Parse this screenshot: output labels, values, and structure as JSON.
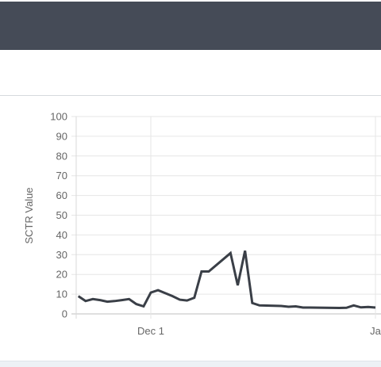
{
  "colors": {
    "header_bg": "#454b57",
    "line": "#3a3f47",
    "grid": "#e6e6e6",
    "tick_text": "#666666"
  },
  "chart_data": {
    "type": "line",
    "title": "",
    "xlabel": "",
    "ylabel": "SCTR Value",
    "ylim": [
      0,
      100
    ],
    "y_ticks": [
      0,
      10,
      20,
      30,
      40,
      50,
      60,
      70,
      80,
      90,
      100
    ],
    "x_ticks": [
      {
        "label": "Dec 1",
        "x": "2022-12-01"
      },
      {
        "label": "Ja",
        "x": "2023-01-01"
      }
    ],
    "grid": true,
    "legend": "none",
    "series": [
      {
        "color": "#3a3f47",
        "points": [
          {
            "x": "2022-11-21",
            "y": 9
          },
          {
            "x": "2022-11-22",
            "y": 6.5
          },
          {
            "x": "2022-11-23",
            "y": 7.5
          },
          {
            "x": "2022-11-24",
            "y": 7
          },
          {
            "x": "2022-11-25",
            "y": 6.2
          },
          {
            "x": "2022-11-26",
            "y": 6.5
          },
          {
            "x": "2022-11-27",
            "y": 7
          },
          {
            "x": "2022-11-28",
            "y": 7.5
          },
          {
            "x": "2022-11-29",
            "y": 5
          },
          {
            "x": "2022-11-30",
            "y": 3.8
          },
          {
            "x": "2022-12-01",
            "y": 10.8
          },
          {
            "x": "2022-12-02",
            "y": 12
          },
          {
            "x": "2022-12-03",
            "y": 10.5
          },
          {
            "x": "2022-12-04",
            "y": 9
          },
          {
            "x": "2022-12-05",
            "y": 7.2
          },
          {
            "x": "2022-12-06",
            "y": 6.8
          },
          {
            "x": "2022-12-07",
            "y": 8.2
          },
          {
            "x": "2022-12-08",
            "y": 21.5
          },
          {
            "x": "2022-12-09",
            "y": 21.5
          },
          {
            "x": "2022-12-12",
            "y": 30.8
          },
          {
            "x": "2022-12-13",
            "y": 14.5
          },
          {
            "x": "2022-12-14",
            "y": 32
          },
          {
            "x": "2022-12-15",
            "y": 5.5
          },
          {
            "x": "2022-12-16",
            "y": 4.3
          },
          {
            "x": "2022-12-19",
            "y": 4
          },
          {
            "x": "2022-12-20",
            "y": 3.6
          },
          {
            "x": "2022-12-21",
            "y": 3.8
          },
          {
            "x": "2022-12-22",
            "y": 3.2
          },
          {
            "x": "2022-12-23",
            "y": 3.2
          },
          {
            "x": "2022-12-27",
            "y": 3
          },
          {
            "x": "2022-12-28",
            "y": 3.1
          },
          {
            "x": "2022-12-29",
            "y": 4.3
          },
          {
            "x": "2022-12-30",
            "y": 3.3
          },
          {
            "x": "2022-12-31",
            "y": 3.5
          },
          {
            "x": "2023-01-01",
            "y": 3.2
          }
        ]
      }
    ]
  }
}
